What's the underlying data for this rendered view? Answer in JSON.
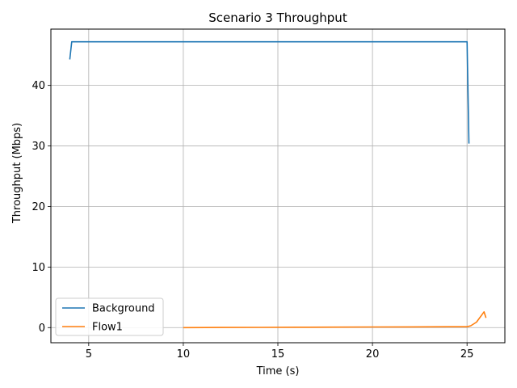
{
  "chart_data": {
    "type": "line",
    "title": "Scenario 3 Throughput",
    "xlabel": "Time (s)",
    "ylabel": "Throughput (Mbps)",
    "xlim": [
      3.0,
      27.0
    ],
    "ylim": [
      -2.5,
      49.3
    ],
    "xticks": [
      5,
      10,
      15,
      20,
      25
    ],
    "yticks": [
      0,
      10,
      20,
      30,
      40
    ],
    "grid": true,
    "legend": "lower-left",
    "series": [
      {
        "name": "Background",
        "color": "#1f77b4",
        "x": [
          4.0,
          4.1,
          4.5,
          5,
          6,
          7,
          8,
          9,
          10,
          11,
          12,
          13,
          14,
          15,
          16,
          17,
          18,
          19,
          20,
          21,
          22,
          23,
          24,
          25.0,
          25.1
        ],
        "y": [
          44.3,
          47.2,
          47.2,
          47.2,
          47.2,
          47.2,
          47.2,
          47.2,
          47.2,
          47.2,
          47.2,
          47.2,
          47.2,
          47.2,
          47.2,
          47.2,
          47.2,
          47.2,
          47.2,
          47.2,
          47.2,
          47.2,
          47.2,
          47.2,
          30.4
        ]
      },
      {
        "name": "Flow1",
        "color": "#ff7f0e",
        "x": [
          10,
          12,
          14,
          16,
          18,
          20,
          22,
          24,
          25.0,
          25.2,
          25.5,
          25.9,
          26.0
        ],
        "y": [
          0.0,
          0.02,
          0.04,
          0.06,
          0.08,
          0.1,
          0.12,
          0.14,
          0.15,
          0.3,
          0.9,
          2.6,
          1.6
        ]
      }
    ]
  }
}
